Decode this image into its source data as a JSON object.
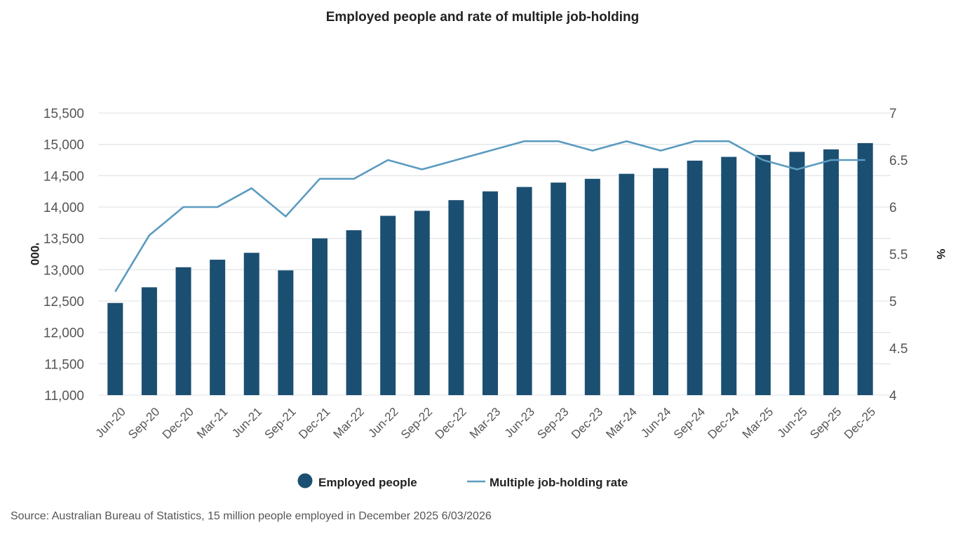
{
  "chart_data": {
    "type": "bar",
    "title": "Employed people and rate of multiple job-holding",
    "categories": [
      "Jun-20",
      "Sep-20",
      "Dec-20",
      "Mar-21",
      "Jun-21",
      "Sep-21",
      "Dec-21",
      "Mar-22",
      "Jun-22",
      "Sep-22",
      "Dec-22",
      "Mar-23",
      "Jun-23",
      "Sep-23",
      "Dec-23",
      "Mar-24",
      "Jun-24",
      "Sep-24",
      "Dec-24",
      "Mar-25",
      "Jun-25",
      "Sep-25",
      "Dec-25"
    ],
    "series": [
      {
        "name": "Employed people",
        "type": "bar",
        "axis": "left",
        "color": "#1b4f72",
        "values": [
          12470,
          12720,
          13040,
          13160,
          13270,
          12990,
          13500,
          13630,
          13860,
          13940,
          14110,
          14250,
          14320,
          14390,
          14450,
          14530,
          14620,
          14740,
          14800,
          14830,
          14880,
          14920,
          15020
        ]
      },
      {
        "name": "Multiple job-holding rate",
        "type": "line",
        "axis": "right",
        "color": "#5b9bc0",
        "values": [
          5.1,
          5.7,
          6.0,
          6.0,
          6.2,
          5.9,
          6.3,
          6.3,
          6.5,
          6.4,
          6.5,
          6.6,
          6.7,
          6.7,
          6.6,
          6.7,
          6.6,
          6.7,
          6.7,
          6.5,
          6.4,
          6.5,
          6.5
        ]
      }
    ],
    "ylabel": "'000",
    "y2label": "%",
    "ylim": [
      11000,
      15500
    ],
    "y2lim": [
      4,
      7
    ],
    "yticks": [
      "11,000",
      "11,500",
      "12,000",
      "12,500",
      "13,000",
      "13,500",
      "14,000",
      "14,500",
      "15,000",
      "15,500"
    ],
    "y2ticks": [
      "4",
      "4.5",
      "5",
      "5.5",
      "6",
      "6.5",
      "7"
    ],
    "grid": true,
    "legend": "bottom"
  },
  "source": "Source: Australian Bureau of Statistics, 15 million people employed in December 2025 6/03/2026"
}
